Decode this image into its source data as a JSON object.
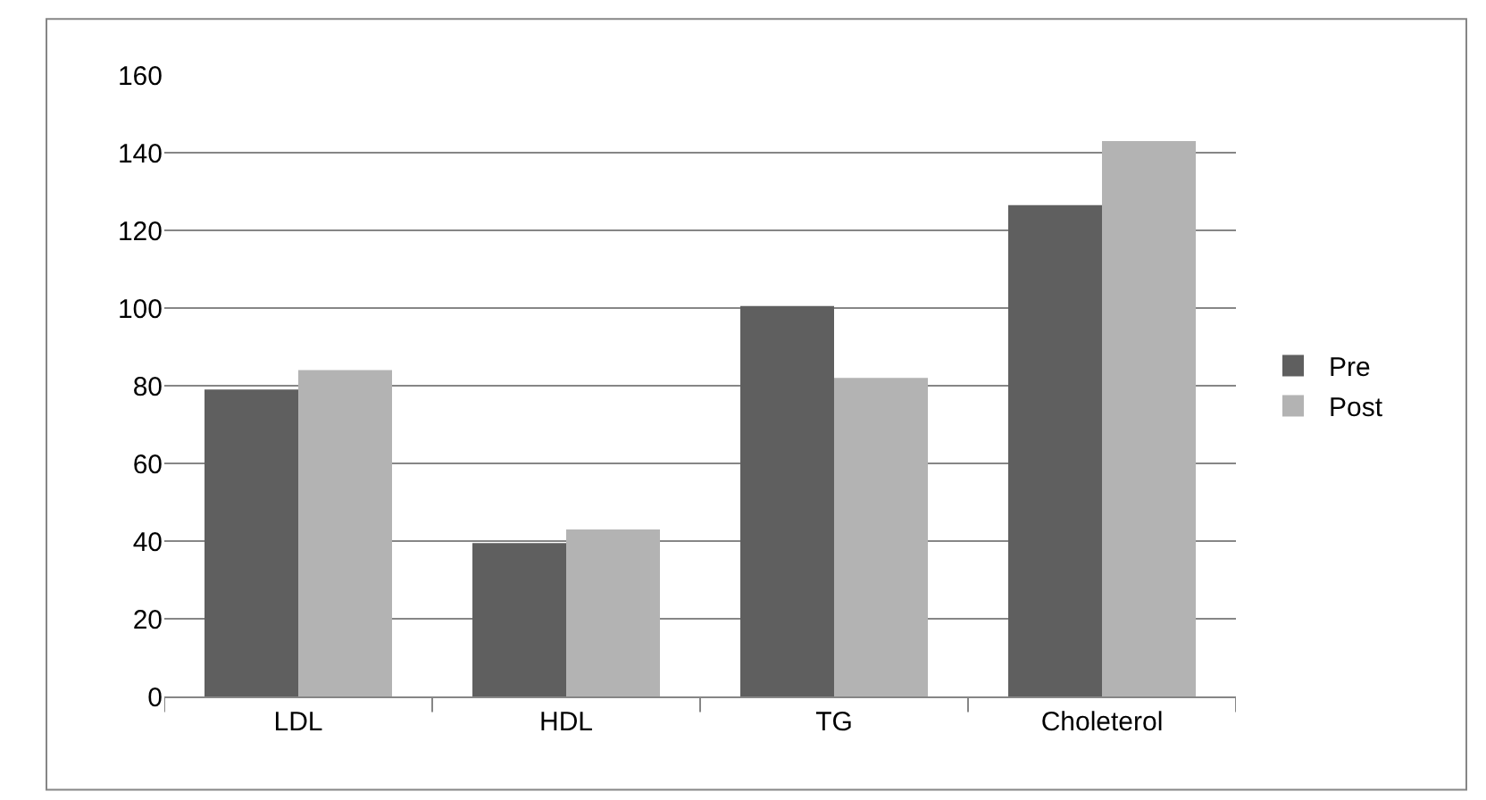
{
  "chart_data": {
    "type": "bar",
    "categories": [
      "LDL",
      "HDL",
      "TG",
      "Choleterol"
    ],
    "series": [
      {
        "name": "Pre",
        "color": "#5f5f5f",
        "values": [
          79,
          39.5,
          100.5,
          126.5
        ]
      },
      {
        "name": "Post",
        "color": "#b3b3b3",
        "values": [
          84,
          43,
          82,
          143
        ]
      }
    ],
    "ylim": [
      0,
      160
    ],
    "yticks": [
      0,
      20,
      40,
      60,
      80,
      100,
      120,
      140,
      160
    ],
    "grid": "y",
    "legend": "right"
  }
}
